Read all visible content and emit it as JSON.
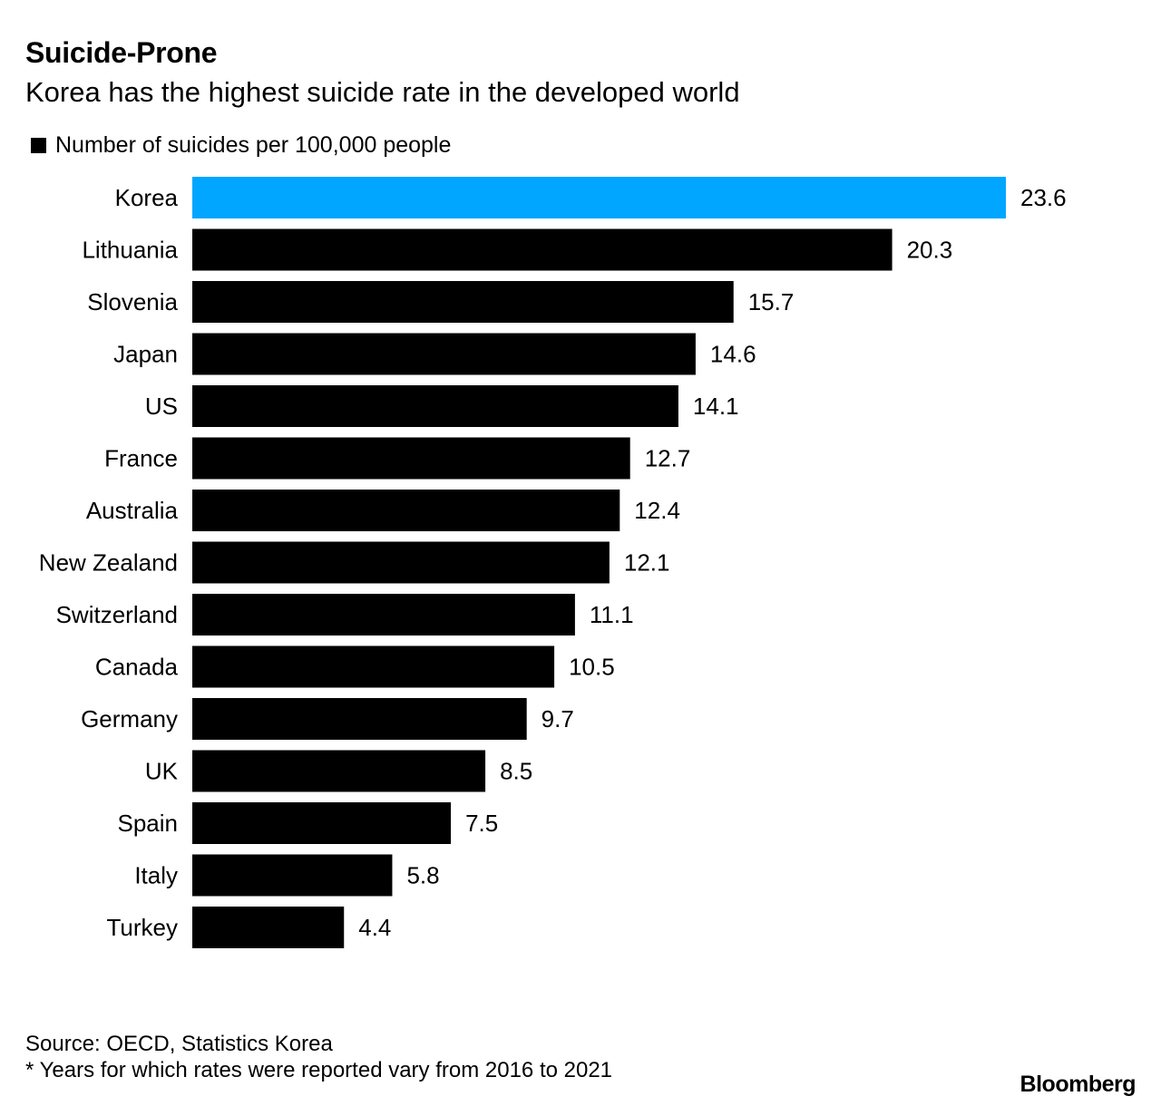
{
  "chart_data": {
    "type": "bar",
    "orientation": "horizontal",
    "title": "Suicide-Prone",
    "subtitle": "Korea has the highest suicide rate in the developed world",
    "legend": "Number of suicides per 100,000 people",
    "categories": [
      "Korea",
      "Lithuania",
      "Slovenia",
      "Japan",
      "US",
      "France",
      "Australia",
      "New Zealand",
      "Switzerland",
      "Canada",
      "Germany",
      "UK",
      "Spain",
      "Italy",
      "Turkey"
    ],
    "values": [
      23.6,
      20.3,
      15.7,
      14.6,
      14.1,
      12.7,
      12.4,
      12.1,
      11.1,
      10.5,
      9.7,
      8.5,
      7.5,
      5.8,
      4.4
    ],
    "value_labels": [
      "23.6",
      "20.3",
      "15.7",
      "14.6",
      "14.1",
      "12.7",
      "12.4",
      "12.1",
      "11.1",
      "10.5",
      "9.7",
      "8.5",
      "7.5",
      "5.8",
      "4.4"
    ],
    "highlight": "Korea",
    "colors": {
      "bar": "#000000",
      "highlight": "#00a6ff"
    },
    "xlim": [
      0,
      23.6
    ],
    "grid": false
  },
  "footer": {
    "source": "Source: OECD, Statistics Korea",
    "note": "* Years for which rates were reported vary from 2016 to 2021",
    "brand": "Bloomberg"
  }
}
